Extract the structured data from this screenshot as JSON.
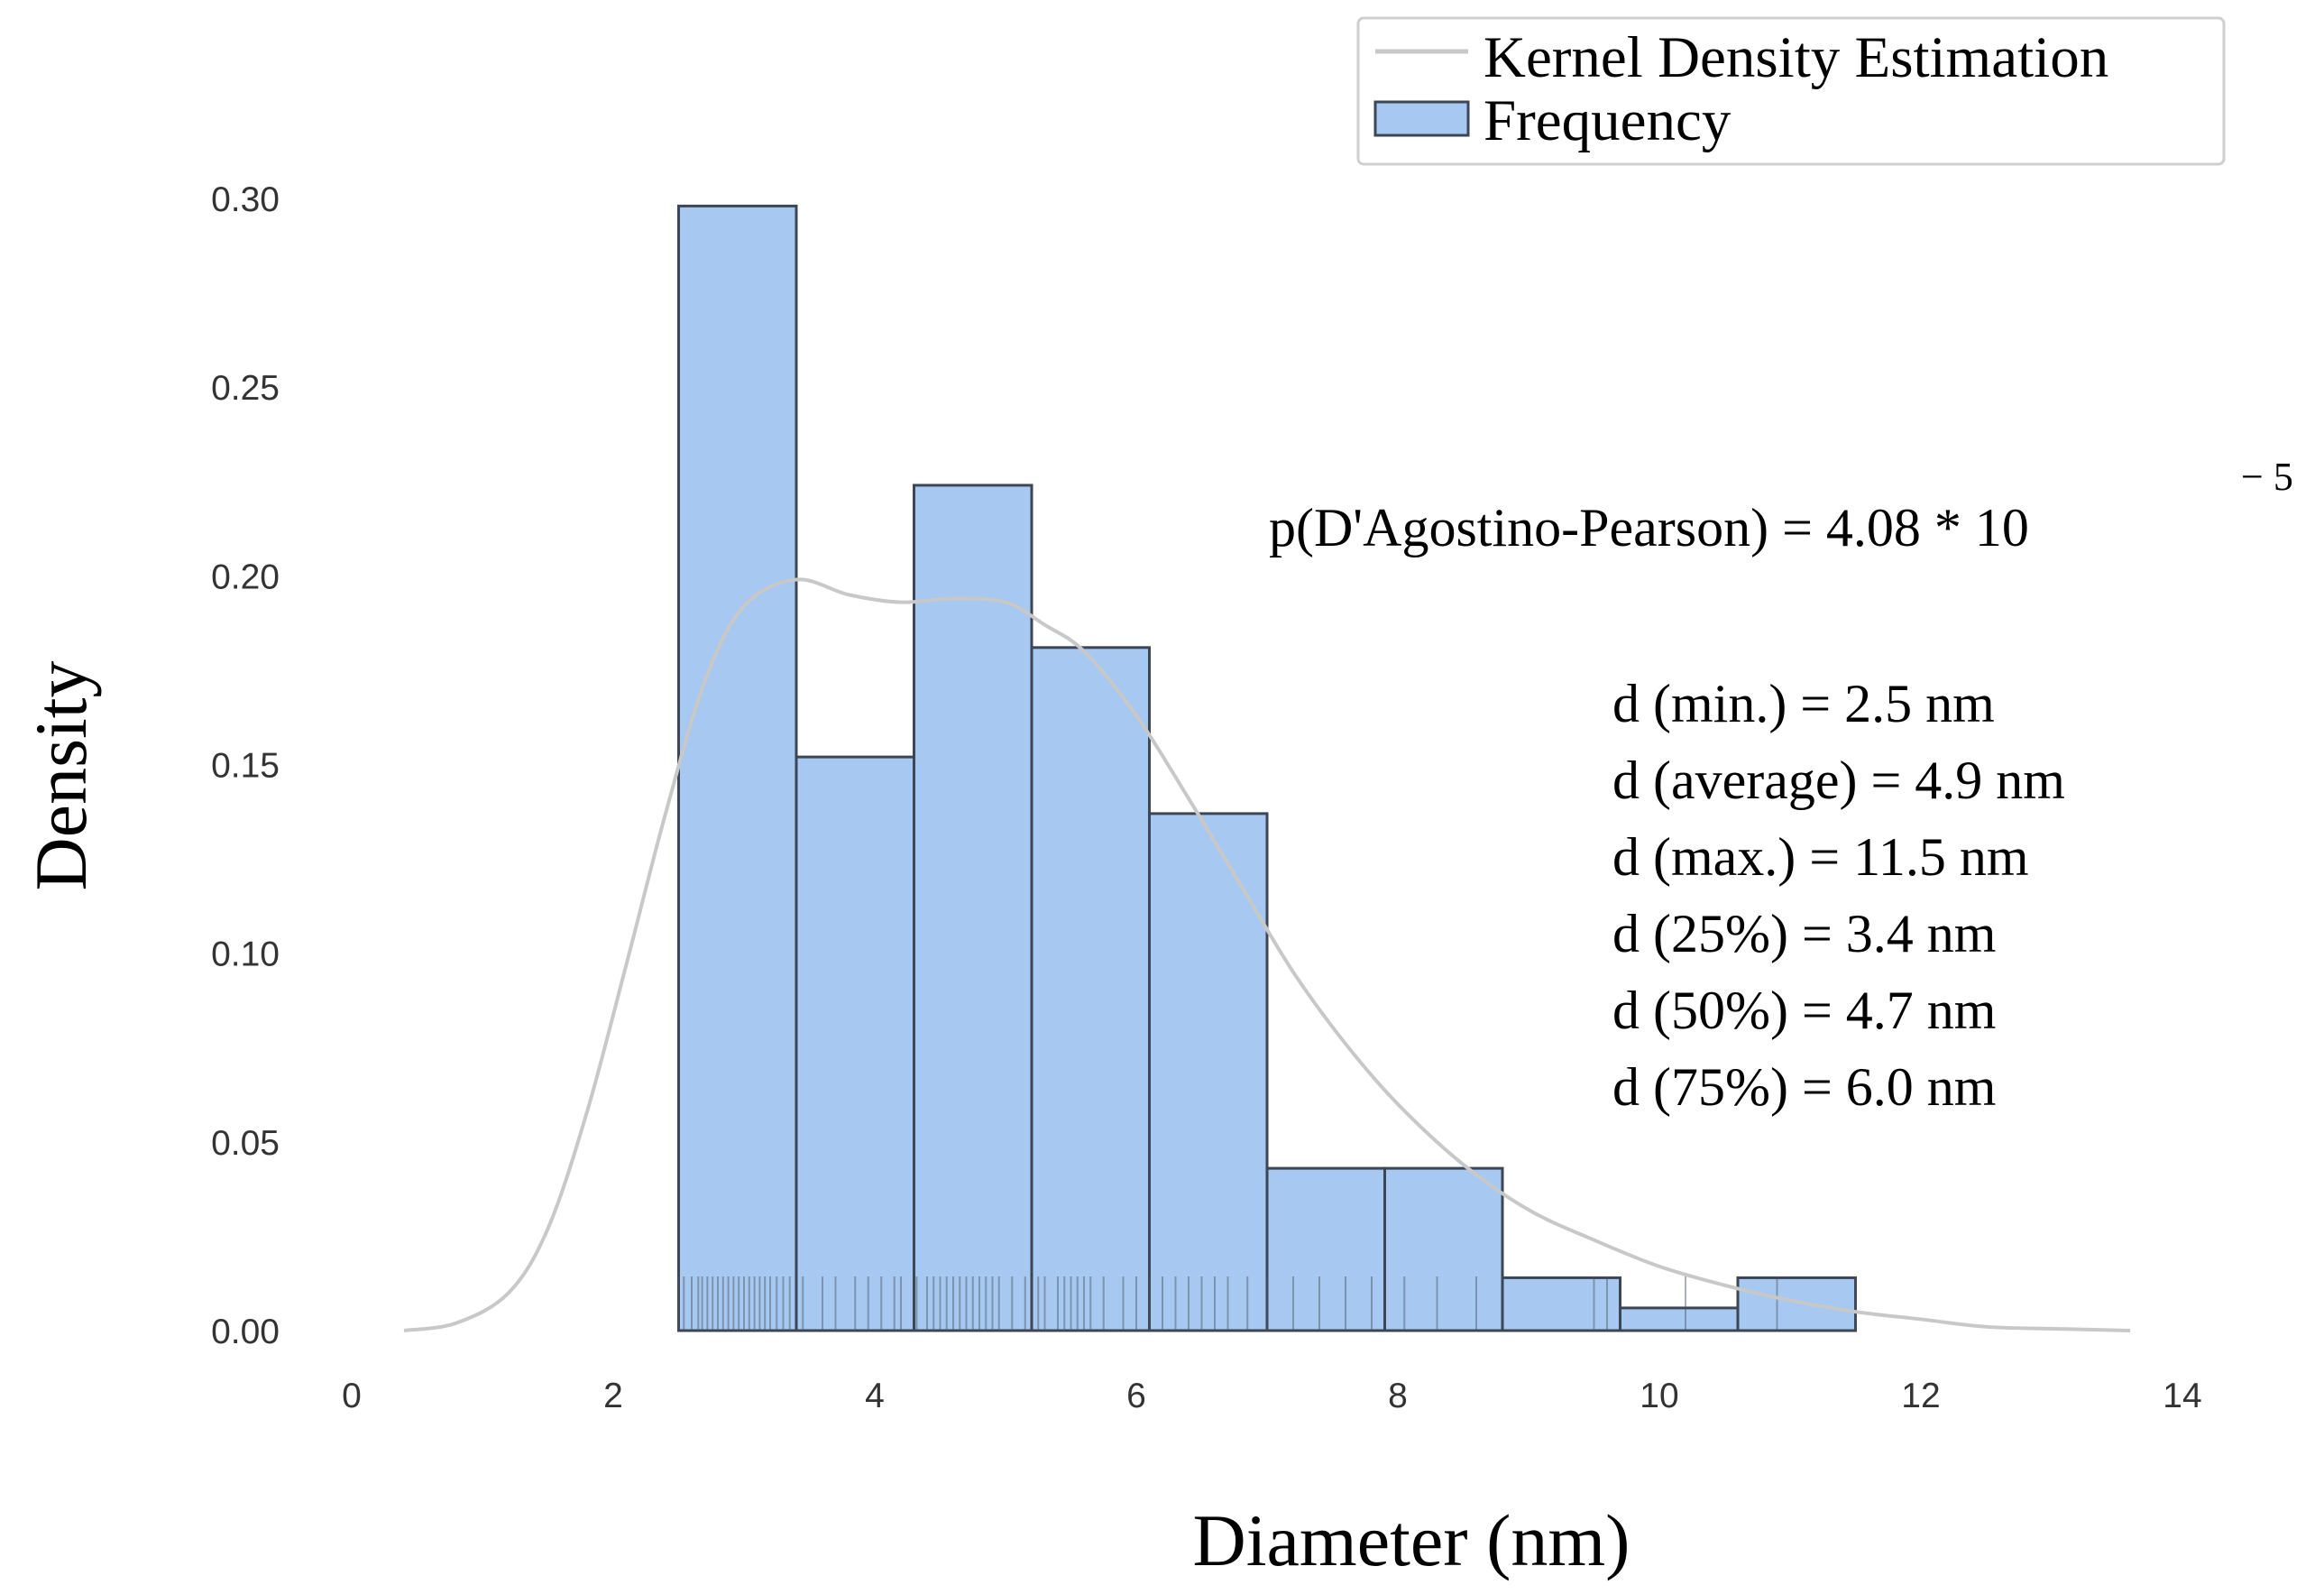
{
  "chart_data": {
    "type": "bar",
    "title": "",
    "xlabel": "Diameter (nm)",
    "ylabel": "Density",
    "xlim": [
      0,
      14
    ],
    "ylim": [
      0,
      0.3
    ],
    "grid": false,
    "x_ticks": [
      0,
      2,
      4,
      6,
      8,
      10,
      12,
      14
    ],
    "x_tick_labels": [
      "0",
      "2",
      "4",
      "6",
      "8",
      "10",
      "12",
      "14"
    ],
    "y_ticks": [
      0,
      0.05,
      0.1,
      0.15,
      0.2,
      0.25,
      0.3
    ],
    "y_tick_labels": [
      "0.00",
      "0.05",
      "0.10",
      "0.15",
      "0.20",
      "0.25",
      "0.30"
    ],
    "legend": {
      "position": "top-right",
      "entries": [
        {
          "label": "Kernel Density Estimation",
          "kind": "line",
          "color": "#c8c8c8"
        },
        {
          "label": "Frequency",
          "kind": "patch",
          "color": "#a7c8f0"
        }
      ]
    },
    "series": [
      {
        "name": "Frequency",
        "type": "histogram",
        "color": "#a7c8f0",
        "edge_color": "#3d4654",
        "bins": [
          {
            "x0": 2.5,
            "x1": 3.4,
            "value": 0.298
          },
          {
            "x0": 3.4,
            "x1": 4.3,
            "value": 0.152
          },
          {
            "x0": 4.3,
            "x1": 5.2,
            "value": 0.224
          },
          {
            "x0": 5.2,
            "x1": 6.1,
            "value": 0.181
          },
          {
            "x0": 6.1,
            "x1": 7.0,
            "value": 0.137
          },
          {
            "x0": 7.0,
            "x1": 7.9,
            "value": 0.043
          },
          {
            "x0": 7.9,
            "x1": 8.8,
            "value": 0.043
          },
          {
            "x0": 8.8,
            "x1": 9.7,
            "value": 0.014
          },
          {
            "x0": 9.7,
            "x1": 10.6,
            "value": 0.006
          },
          {
            "x0": 10.6,
            "x1": 11.5,
            "value": 0.014
          }
        ]
      },
      {
        "name": "Kernel Density Estimation",
        "type": "line",
        "color": "#c8c8c8",
        "x": [
          0.4,
          0.8,
          1.2,
          1.5,
          1.8,
          2.1,
          2.4,
          2.7,
          3.0,
          3.4,
          3.8,
          4.2,
          4.6,
          5.0,
          5.3,
          5.6,
          6.0,
          6.4,
          6.8,
          7.2,
          7.6,
          8.0,
          8.5,
          9.0,
          9.5,
          10.0,
          10.5,
          11.0,
          11.5,
          12.0,
          12.5,
          13.0,
          13.6
        ],
        "y": [
          0.0,
          0.002,
          0.01,
          0.027,
          0.058,
          0.097,
          0.137,
          0.172,
          0.192,
          0.199,
          0.195,
          0.193,
          0.194,
          0.193,
          0.187,
          0.18,
          0.163,
          0.141,
          0.118,
          0.095,
          0.076,
          0.06,
          0.044,
          0.032,
          0.024,
          0.017,
          0.012,
          0.008,
          0.005,
          0.003,
          0.001,
          0.0005,
          0.0
        ]
      }
    ],
    "rug": {
      "color": "#4a5260",
      "values": [
        2.5,
        2.54,
        2.6,
        2.65,
        2.68,
        2.72,
        2.76,
        2.8,
        2.84,
        2.88,
        2.92,
        2.96,
        3.0,
        3.04,
        3.08,
        3.12,
        3.16,
        3.2,
        3.25,
        3.3,
        3.35,
        3.45,
        3.6,
        3.7,
        3.85,
        3.95,
        4.05,
        4.15,
        4.2,
        4.32,
        4.4,
        4.45,
        4.5,
        4.55,
        4.6,
        4.65,
        4.7,
        4.75,
        4.8,
        4.85,
        4.9,
        4.95,
        5.05,
        5.15,
        5.25,
        5.3,
        5.4,
        5.45,
        5.5,
        5.55,
        5.6,
        5.65,
        5.75,
        5.9,
        6.0,
        6.1,
        6.2,
        6.3,
        6.4,
        6.5,
        6.6,
        6.7,
        6.85,
        7.0,
        7.2,
        7.4,
        7.6,
        7.8,
        8.05,
        8.3,
        8.6,
        9.5,
        9.6,
        10.2,
        10.9,
        11.5
      ]
    },
    "annotations": {
      "p_value_text": "p(D'Agostino-Pearson) =  4.08 * 10",
      "p_value_exponent": "− 5",
      "stats": [
        "d (min.) = 2.5 nm",
        "d (average) = 4.9 nm",
        "d (max.) = 11.5 nm",
        "d (25%) = 3.4 nm",
        "d (50%) = 4.7 nm",
        "d (75%) = 6.0 nm"
      ]
    }
  }
}
